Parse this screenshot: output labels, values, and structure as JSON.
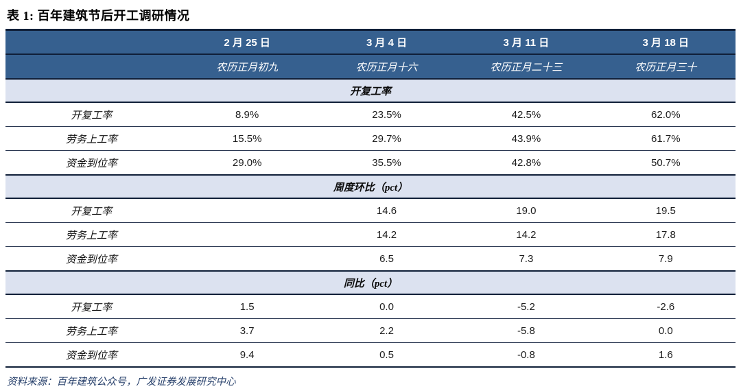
{
  "title": "表 1: 百年建筑节后开工调研情况",
  "table": {
    "columns": [
      {
        "date": "2 月 25 日",
        "lunar": "农历正月初九"
      },
      {
        "date": "3 月 4 日",
        "lunar": "农历正月十六"
      },
      {
        "date": "3 月 11 日",
        "lunar": "农历正月二十三"
      },
      {
        "date": "3 月 18 日",
        "lunar": "农历正月三十"
      }
    ],
    "sections": [
      {
        "header": "开复工率",
        "rows": [
          {
            "label": "开复工率",
            "values": [
              "8.9%",
              "23.5%",
              "42.5%",
              "62.0%"
            ]
          },
          {
            "label": "劳务上工率",
            "values": [
              "15.5%",
              "29.7%",
              "43.9%",
              "61.7%"
            ]
          },
          {
            "label": "资金到位率",
            "values": [
              "29.0%",
              "35.5%",
              "42.8%",
              "50.7%"
            ]
          }
        ]
      },
      {
        "header": "周度环比（pct）",
        "rows": [
          {
            "label": "开复工率",
            "values": [
              "",
              "14.6",
              "19.0",
              "19.5"
            ]
          },
          {
            "label": "劳务上工率",
            "values": [
              "",
              "14.2",
              "14.2",
              "17.8"
            ]
          },
          {
            "label": "资金到位率",
            "values": [
              "",
              "6.5",
              "7.3",
              "7.9"
            ]
          }
        ]
      },
      {
        "header": "同比（pct）",
        "rows": [
          {
            "label": "开复工率",
            "values": [
              "1.5",
              "0.0",
              "-5.2",
              "-2.6"
            ]
          },
          {
            "label": "劳务上工率",
            "values": [
              "3.7",
              "2.2",
              "-5.8",
              "0.0"
            ]
          },
          {
            "label": "资金到位率",
            "values": [
              "9.4",
              "0.5",
              "-0.8",
              "1.6"
            ]
          }
        ]
      }
    ]
  },
  "footer": {
    "source": "资料来源：百年建筑公众号，广发证券发展研究中心"
  },
  "colors": {
    "header_bg": "#36608f",
    "section_bg": "#dce2f0",
    "border_dark": "#101f38",
    "row_divider": "#26334e",
    "footer_text": "#27406b"
  }
}
